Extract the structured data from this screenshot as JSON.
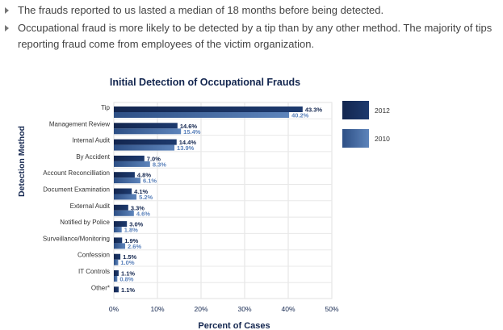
{
  "bullets": [
    "The frauds reported to us lasted a median of 18 months before being detected.",
    "Occupational fraud is more likely to be detected by a tip than by any other method. The majority of tips reporting fraud come from employees of the victim organization."
  ],
  "chart_data": {
    "type": "bar",
    "orientation": "horizontal",
    "title": "Initial Detection of Occupational Frauds",
    "xlabel": "Percent of Cases",
    "ylabel": "Detection Method",
    "xlim": [
      0,
      50
    ],
    "xticks": [
      "0%",
      "10%",
      "20%",
      "30%",
      "40%",
      "50%"
    ],
    "grid": true,
    "legend_placement": "right",
    "categories": [
      "Tip",
      "Management Review",
      "Internal Audit",
      "By Accident",
      "Account Reconcilliation",
      "Document Examination",
      "External Audit",
      "Notified by Police",
      "Surveillance/Monitoring",
      "Confession",
      "IT Controls",
      "Other*"
    ],
    "series": [
      {
        "name": "2012",
        "color": "#13264f",
        "values": [
          43.3,
          14.6,
          14.4,
          7.0,
          4.8,
          4.1,
          3.3,
          3.0,
          1.9,
          1.5,
          1.1,
          1.1
        ]
      },
      {
        "name": "2010",
        "color": "#4a72a8",
        "values": [
          40.2,
          15.4,
          13.9,
          8.3,
          6.1,
          5.2,
          4.6,
          1.8,
          2.6,
          1.0,
          0.8,
          null
        ]
      }
    ]
  }
}
